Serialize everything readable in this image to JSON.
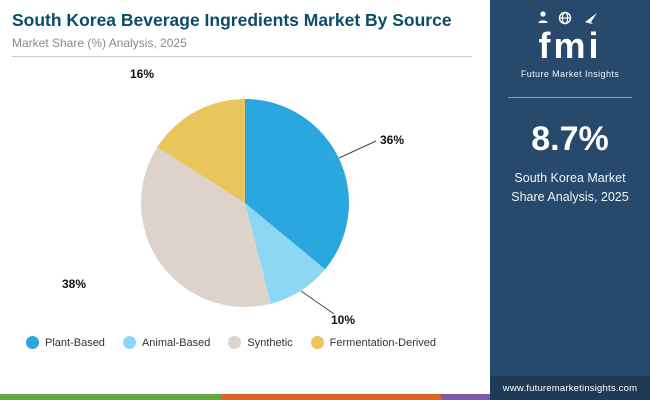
{
  "header": {
    "title": "South Korea Beverage Ingredients Market By Source",
    "subtitle": "Market Share (%) Analysis, 2025"
  },
  "chart_data": {
    "type": "pie",
    "title": "South Korea Beverage Ingredients Market By Source",
    "subtitle": "Market Share (%) Analysis, 2025",
    "categories": [
      "Plant-Based",
      "Animal-Based",
      "Synthetic",
      "Fermentation-Derived"
    ],
    "values": [
      36,
      10,
      38,
      16
    ],
    "labels": [
      "36%",
      "10%",
      "38%",
      "16%"
    ],
    "colors": [
      "#2aa7de",
      "#8bd7f4",
      "#ddd3cb",
      "#eac55c"
    ],
    "unit": "%",
    "start_angle": "top",
    "direction": "clockwise",
    "legend_position": "bottom"
  },
  "sidebar": {
    "logo_text": "fmi",
    "logo_caption": "Future Market Insights",
    "stat_value": "8.7%",
    "stat_caption": "South Korea Market Share Analysis, 2025",
    "url": "www.futuremarketinsights.com",
    "colors": {
      "background": "#27496b",
      "footer": "#1e3a57"
    }
  },
  "theme": {
    "title_color": "#0a4d68",
    "subtitle_color": "#8b8b8b"
  },
  "footer_strip_colors": [
    "#61a744",
    "#dd6327",
    "#7c5ba8"
  ]
}
